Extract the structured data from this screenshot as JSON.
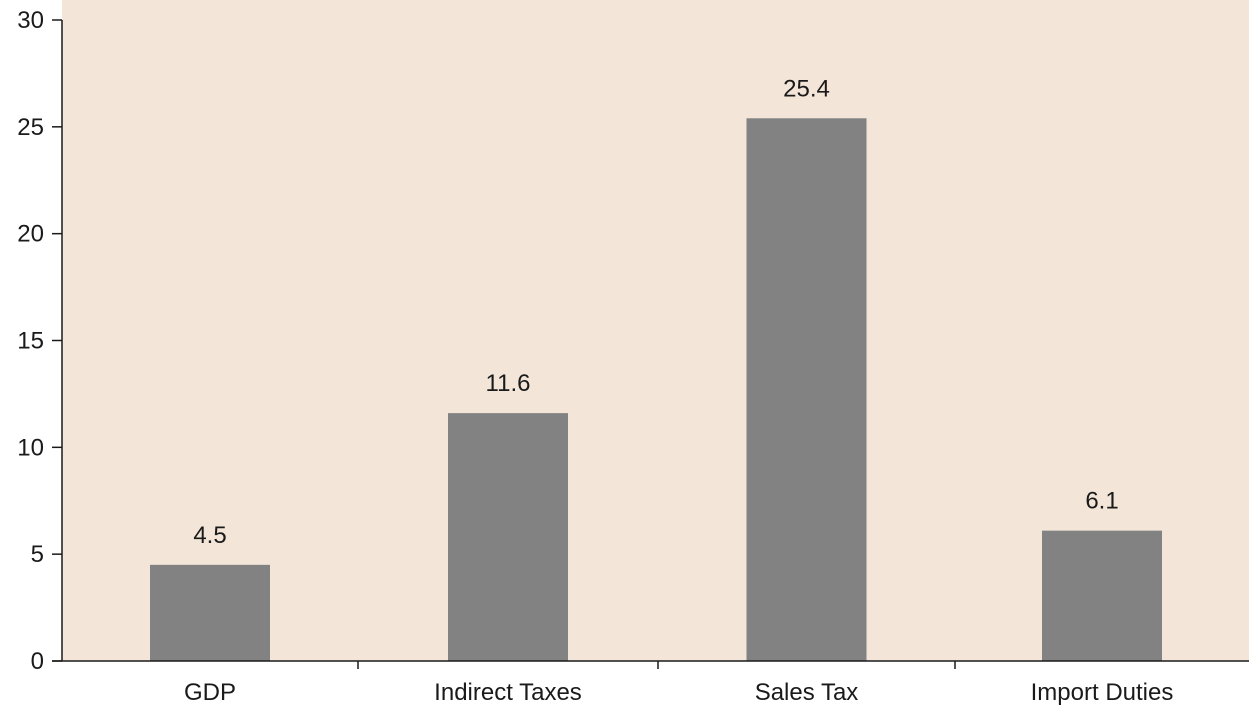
{
  "colors": {
    "plot_background": "#f3e6d9",
    "bar": "#828282",
    "axis": "#1a1a1a"
  },
  "chart_data": {
    "type": "bar",
    "title": "",
    "xlabel": "",
    "ylabel": "",
    "categories": [
      "GDP",
      "Indirect Taxes",
      "Sales Tax",
      "Import Duties"
    ],
    "values": [
      4.5,
      11.6,
      25.4,
      6.1
    ],
    "data_labels": [
      "4.5",
      "11.6",
      "25.4",
      "6.1"
    ],
    "ylim": [
      0,
      30
    ],
    "yticks": [
      0,
      5,
      10,
      15,
      20,
      25,
      30
    ],
    "ytick_labels": [
      "0",
      "5",
      "10",
      "15",
      "20",
      "25",
      "30"
    ],
    "grid": false,
    "legend": "none"
  }
}
